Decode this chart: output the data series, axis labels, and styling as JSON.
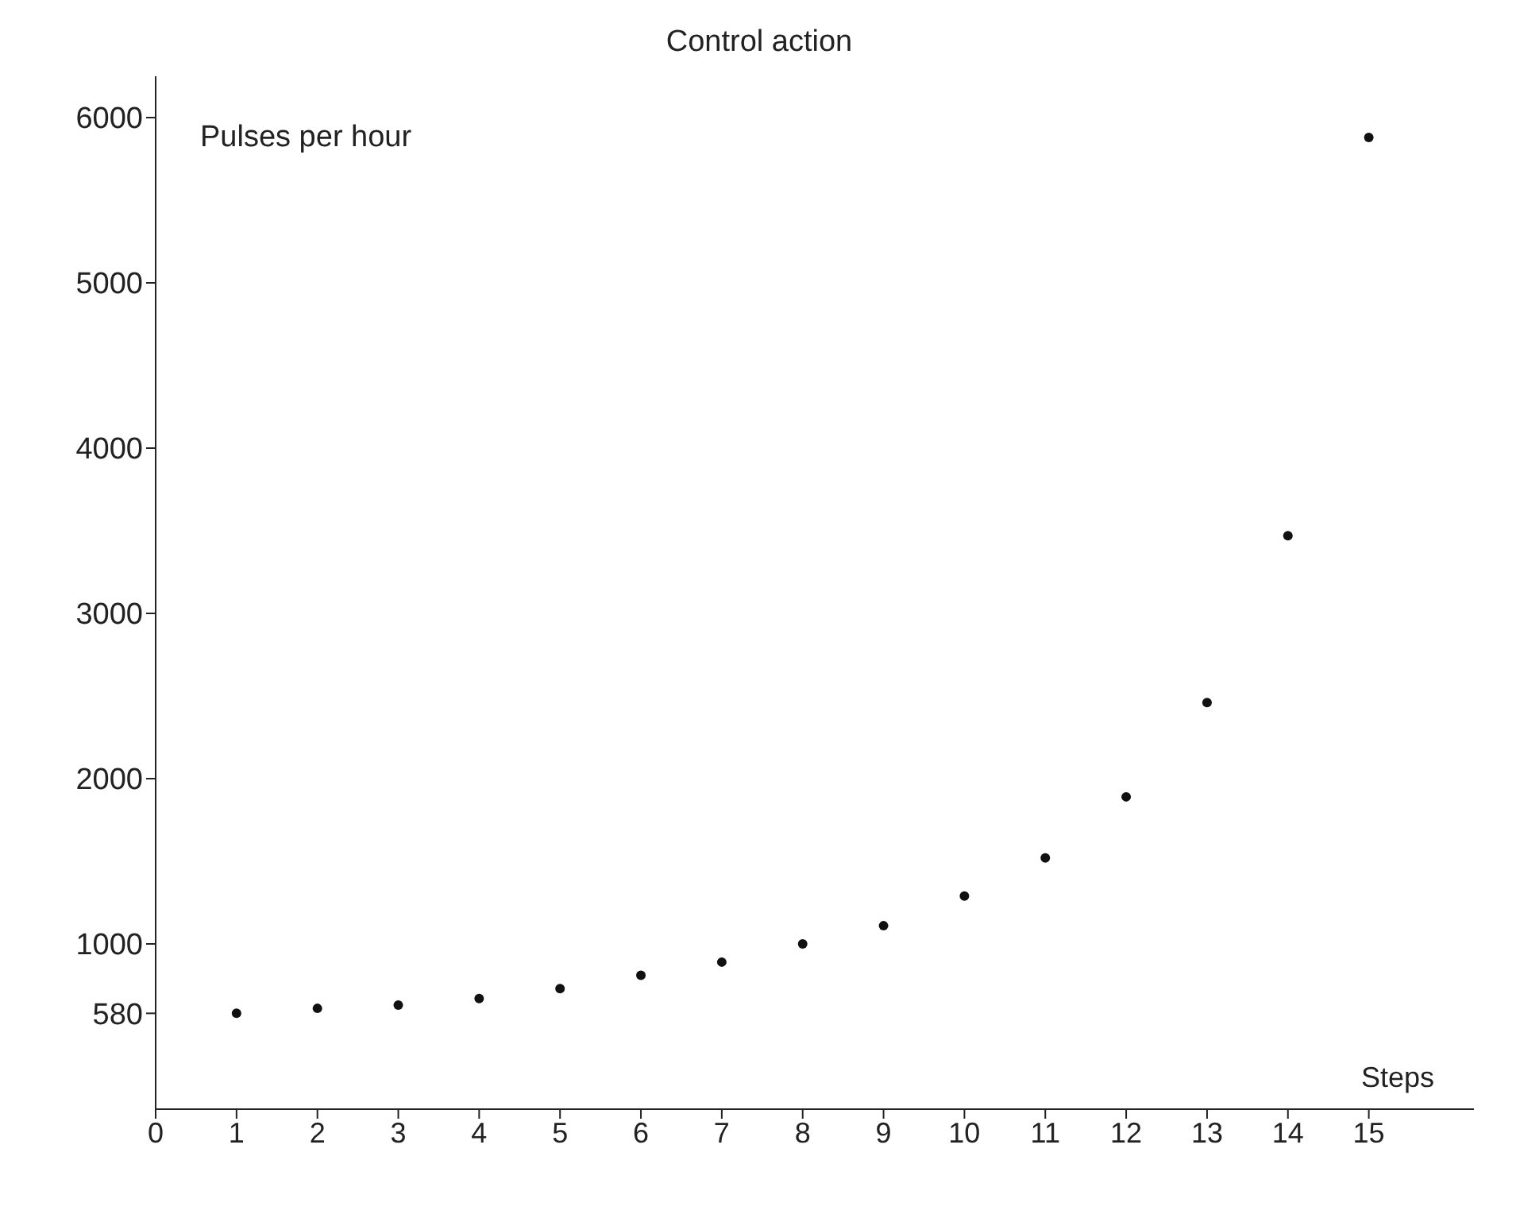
{
  "chart_data": {
    "type": "scatter",
    "title": "Control action",
    "xlabel": "Steps",
    "ylabel": "Pulses per hour",
    "x": [
      1,
      2,
      3,
      4,
      5,
      6,
      7,
      8,
      9,
      10,
      11,
      12,
      13,
      14,
      15
    ],
    "series": [
      {
        "color": "#111111",
        "values": [
          580,
          610,
          630,
          670,
          730,
          810,
          890,
          1000,
          1110,
          1290,
          1520,
          1890,
          2460,
          3470,
          5880
        ]
      }
    ],
    "xlim": [
      0,
      16.3
    ],
    "xticks": [
      0,
      1,
      2,
      3,
      4,
      5,
      6,
      7,
      8,
      9,
      10,
      11,
      12,
      13,
      14,
      15
    ],
    "ylim": [
      0,
      6250
    ],
    "yticks": [
      580,
      1000,
      2000,
      3000,
      4000,
      5000,
      6000
    ],
    "grid": false,
    "legend": false,
    "marker": "circle"
  }
}
